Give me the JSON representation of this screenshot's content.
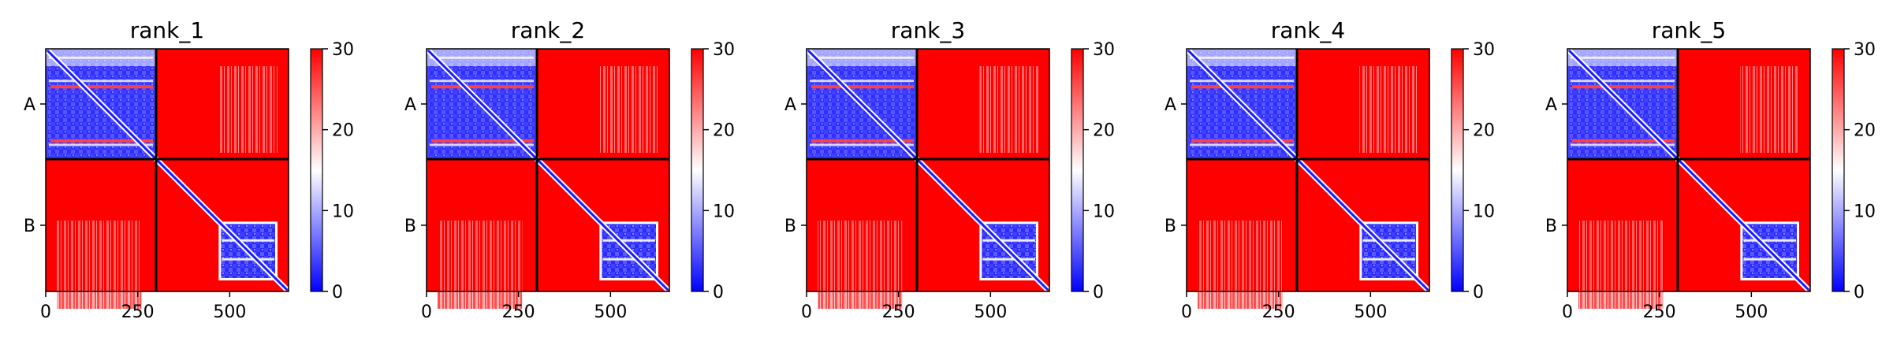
{
  "colorbar": {
    "colors": [
      "#0000ff",
      "#ffffff",
      "#ff0000"
    ],
    "range": [
      0,
      30
    ],
    "ticks": [
      0,
      10,
      20,
      30
    ]
  },
  "chart_data": [
    {
      "type": "heatmap",
      "title": "rank_1",
      "x_range": [
        0,
        660
      ],
      "x_ticks": [
        0,
        250,
        500
      ],
      "row_labels": [
        "A",
        "B"
      ],
      "chain_boundary": 300,
      "value_range": [
        0,
        30
      ],
      "blocks": [
        {
          "name": "A-A",
          "value": 4
        },
        {
          "name": "A-B",
          "value": 30
        },
        {
          "name": "B-A",
          "value": 30
        },
        {
          "name": "B-B",
          "value": 30
        },
        {
          "name": "B-B domain",
          "x": [
            470,
            630
          ],
          "value": 4
        }
      ]
    },
    {
      "type": "heatmap",
      "title": "rank_2",
      "x_range": [
        0,
        660
      ],
      "x_ticks": [
        0,
        250,
        500
      ],
      "row_labels": [
        "A",
        "B"
      ],
      "chain_boundary": 300,
      "value_range": [
        0,
        30
      ],
      "blocks": [
        {
          "name": "A-A",
          "value": 4
        },
        {
          "name": "A-B",
          "value": 30
        },
        {
          "name": "B-A",
          "value": 30
        },
        {
          "name": "B-B",
          "value": 30
        },
        {
          "name": "B-B domain",
          "x": [
            470,
            630
          ],
          "value": 4
        }
      ]
    },
    {
      "type": "heatmap",
      "title": "rank_3",
      "x_range": [
        0,
        660
      ],
      "x_ticks": [
        0,
        250,
        500
      ],
      "row_labels": [
        "A",
        "B"
      ],
      "chain_boundary": 300,
      "value_range": [
        0,
        30
      ],
      "blocks": [
        {
          "name": "A-A",
          "value": 4
        },
        {
          "name": "A-B",
          "value": 30
        },
        {
          "name": "B-A",
          "value": 30
        },
        {
          "name": "B-B",
          "value": 30
        },
        {
          "name": "B-B domain",
          "x": [
            470,
            630
          ],
          "value": 4
        }
      ]
    },
    {
      "type": "heatmap",
      "title": "rank_4",
      "x_range": [
        0,
        660
      ],
      "x_ticks": [
        0,
        250,
        500
      ],
      "row_labels": [
        "A",
        "B"
      ],
      "chain_boundary": 300,
      "value_range": [
        0,
        30
      ],
      "blocks": [
        {
          "name": "A-A",
          "value": 4
        },
        {
          "name": "A-B",
          "value": 30
        },
        {
          "name": "B-A",
          "value": 30
        },
        {
          "name": "B-B",
          "value": 30
        },
        {
          "name": "B-B domain",
          "x": [
            470,
            630
          ],
          "value": 4
        }
      ]
    },
    {
      "type": "heatmap",
      "title": "rank_5",
      "x_range": [
        0,
        660
      ],
      "x_ticks": [
        0,
        250,
        500
      ],
      "row_labels": [
        "A",
        "B"
      ],
      "chain_boundary": 300,
      "value_range": [
        0,
        30
      ],
      "blocks": [
        {
          "name": "A-A",
          "value": 4
        },
        {
          "name": "A-B",
          "value": 30
        },
        {
          "name": "B-A",
          "value": 30
        },
        {
          "name": "B-B",
          "value": 30
        },
        {
          "name": "B-B domain",
          "x": [
            470,
            630
          ],
          "value": 4
        }
      ]
    }
  ]
}
